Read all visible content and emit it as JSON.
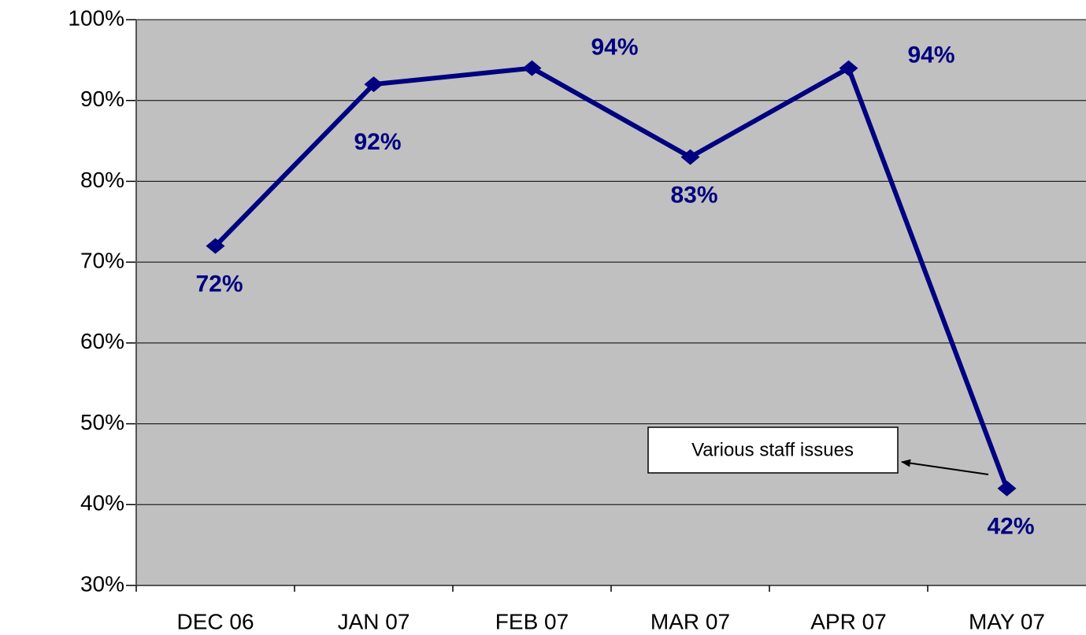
{
  "chart_data": {
    "type": "line",
    "categories": [
      "DEC 06",
      "JAN 07",
      "FEB 07",
      "MAR 07",
      "APR 07",
      "MAY 07"
    ],
    "series": [
      {
        "name": null,
        "color": "#000080",
        "values": [
          72,
          92,
          94,
          83,
          94,
          42
        ],
        "value_labels": [
          "72%",
          "92%",
          "94%",
          "83%",
          "94%",
          "42%"
        ]
      }
    ],
    "ylim": [
      30,
      100
    ],
    "yticks": [
      {
        "value": 30,
        "label": "30%"
      },
      {
        "value": 40,
        "label": "40%"
      },
      {
        "value": 50,
        "label": "50%"
      },
      {
        "value": 60,
        "label": "60%"
      },
      {
        "value": 70,
        "label": "70%"
      },
      {
        "value": 80,
        "label": "80%"
      },
      {
        "value": 90,
        "label": "90%"
      },
      {
        "value": 100,
        "label": "100%"
      }
    ],
    "grid": true,
    "background": "#c0c0c0",
    "annotations": [
      {
        "text": "Various staff issues"
      }
    ]
  }
}
